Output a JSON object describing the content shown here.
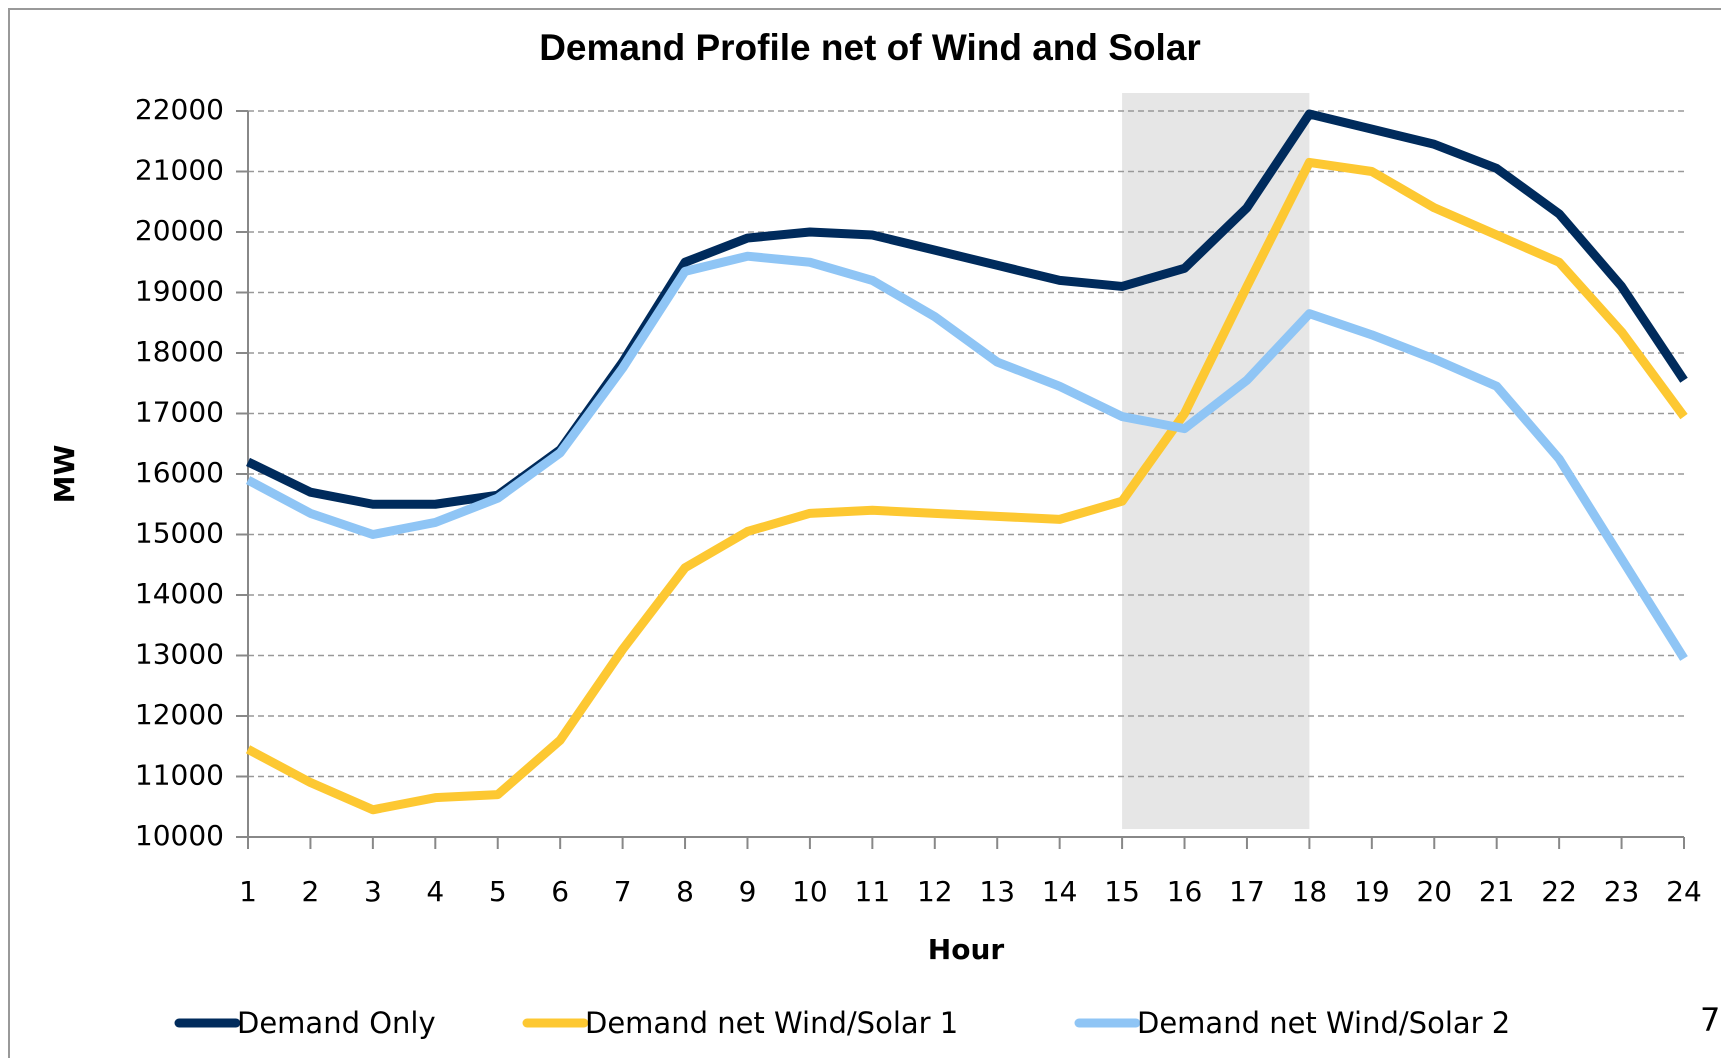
{
  "chart_data": {
    "type": "line",
    "title": "Demand Profile net of Wind and Solar",
    "x_label": "Hour",
    "y_label": "MW",
    "x": [
      1,
      2,
      3,
      4,
      5,
      6,
      7,
      8,
      9,
      10,
      11,
      12,
      13,
      14,
      15,
      16,
      17,
      18,
      19,
      20,
      21,
      22,
      23,
      24
    ],
    "xlim": [
      1,
      24
    ],
    "xticks": [
      1,
      2,
      3,
      4,
      5,
      6,
      7,
      8,
      9,
      10,
      11,
      12,
      13,
      14,
      15,
      16,
      17,
      18,
      19,
      20,
      21,
      22,
      23,
      24
    ],
    "ylim": [
      10000,
      22000
    ],
    "yticks": [
      10000,
      11000,
      12000,
      13000,
      14000,
      15000,
      16000,
      17000,
      18000,
      19000,
      20000,
      21000,
      22000
    ],
    "grid": true,
    "legend": "bottom",
    "shaded_range": {
      "x": [
        15,
        18
      ],
      "color": "#e6e6e6"
    },
    "series": [
      {
        "name": "Demand Only",
        "color": "#002b5c",
        "values": [
          16200,
          15700,
          15500,
          15500,
          15650,
          16400,
          17850,
          19500,
          19900,
          20000,
          19950,
          19700,
          19450,
          19200,
          19100,
          19400,
          20400,
          21950,
          21700,
          21450,
          21050,
          20300,
          19100,
          17550
        ]
      },
      {
        "name": "Demand net Wind/Solar 1",
        "color": "#fdc832",
        "values": [
          11450,
          10900,
          10450,
          10650,
          10700,
          11600,
          13100,
          14450,
          15050,
          15350,
          15400,
          15350,
          15300,
          15250,
          15550,
          17000,
          19100,
          21150,
          21000,
          20400,
          19950,
          19500,
          18350,
          16950
        ]
      },
      {
        "name": "Demand net Wind/Solar 2",
        "color": "#8fc5f5",
        "values": [
          15900,
          15350,
          15000,
          15200,
          15600,
          16350,
          17750,
          19350,
          19600,
          19500,
          19200,
          18600,
          17850,
          17450,
          16950,
          16750,
          17550,
          18650,
          18300,
          17900,
          17450,
          16250,
          14600,
          12950
        ]
      }
    ],
    "annotations": [
      "7"
    ]
  }
}
